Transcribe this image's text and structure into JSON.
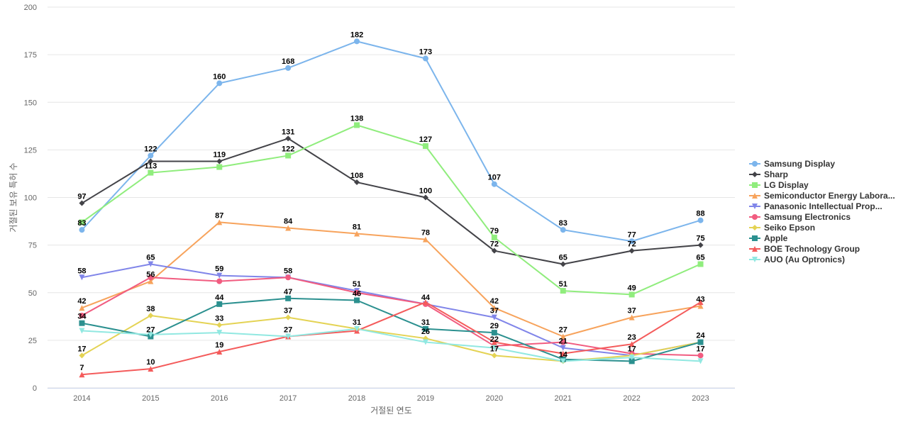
{
  "chart_data": {
    "type": "line",
    "title": "",
    "xlabel": "거절된 연도",
    "ylabel": "거절된 보유 특허 수",
    "categories": [
      "2014",
      "2015",
      "2016",
      "2017",
      "2018",
      "2019",
      "2020",
      "2021",
      "2022",
      "2023"
    ],
    "ylim": [
      0,
      200
    ],
    "yticks": [
      0,
      25,
      50,
      75,
      100,
      125,
      150,
      175,
      200
    ],
    "grid": true,
    "legend_position": "right",
    "series": [
      {
        "name": "Samsung Display",
        "color": "#7cb5ec",
        "marker": "circle",
        "values": [
          83,
          122,
          160,
          168,
          182,
          173,
          107,
          83,
          77,
          88
        ]
      },
      {
        "name": "Sharp",
        "color": "#434348",
        "marker": "diamond",
        "values": [
          97,
          119,
          119,
          131,
          108,
          100,
          72,
          65,
          72,
          75
        ]
      },
      {
        "name": "LG Display",
        "color": "#90ed7d",
        "marker": "square",
        "values": [
          87,
          113,
          116,
          122,
          138,
          127,
          79,
          51,
          49,
          65
        ]
      },
      {
        "name": "Semiconductor Energy Labora...",
        "color": "#f7a35c",
        "marker": "triangle",
        "values": [
          42,
          56,
          87,
          84,
          81,
          78,
          42,
          27,
          37,
          43
        ]
      },
      {
        "name": "Panasonic Intellectual Prop...",
        "color": "#8085e9",
        "marker": "triangle-down",
        "values": [
          58,
          65,
          59,
          58,
          51,
          44,
          37,
          21,
          17,
          24
        ]
      },
      {
        "name": "Samsung Electronics",
        "color": "#f15c80",
        "marker": "circle",
        "values": [
          38,
          58,
          56,
          58,
          50,
          44,
          22,
          24,
          18,
          17
        ]
      },
      {
        "name": "Seiko Epson",
        "color": "#e4d354",
        "marker": "diamond",
        "values": [
          17,
          38,
          33,
          37,
          31,
          26,
          17,
          14,
          17,
          24
        ]
      },
      {
        "name": "Apple",
        "color": "#2b908f",
        "marker": "square",
        "values": [
          34,
          27,
          44,
          47,
          46,
          31,
          29,
          15,
          14,
          24
        ]
      },
      {
        "name": "BOE Technology Group",
        "color": "#f45b5b",
        "marker": "triangle",
        "values": [
          7,
          10,
          19,
          27,
          30,
          45,
          24,
          18,
          23,
          45
        ]
      },
      {
        "name": "AUO (Au Optronics)",
        "color": "#91e8e1",
        "marker": "triangle-down",
        "values": [
          30,
          28,
          29,
          27,
          31,
          24,
          21,
          14,
          16,
          14
        ]
      }
    ],
    "data_labels": [
      {
        "x": "2014",
        "y": 97,
        "text": "97"
      },
      {
        "x": "2014",
        "y": 83,
        "text": "83"
      },
      {
        "x": "2014",
        "y": 58,
        "text": "58"
      },
      {
        "x": "2014",
        "y": 42,
        "text": "42"
      },
      {
        "x": "2014",
        "y": 34,
        "text": "34"
      },
      {
        "x": "2014",
        "y": 17,
        "text": "17"
      },
      {
        "x": "2014",
        "y": 7,
        "text": "7"
      },
      {
        "x": "2015",
        "y": 122,
        "text": "122"
      },
      {
        "x": "2015",
        "y": 113,
        "text": "113"
      },
      {
        "x": "2015",
        "y": 65,
        "text": "65"
      },
      {
        "x": "2015",
        "y": 56,
        "text": "56"
      },
      {
        "x": "2015",
        "y": 38,
        "text": "38"
      },
      {
        "x": "2015",
        "y": 27,
        "text": "27"
      },
      {
        "x": "2015",
        "y": 10,
        "text": "10"
      },
      {
        "x": "2016",
        "y": 160,
        "text": "160"
      },
      {
        "x": "2016",
        "y": 119,
        "text": "119"
      },
      {
        "x": "2016",
        "y": 87,
        "text": "87"
      },
      {
        "x": "2016",
        "y": 59,
        "text": "59"
      },
      {
        "x": "2016",
        "y": 44,
        "text": "44"
      },
      {
        "x": "2016",
        "y": 33,
        "text": "33"
      },
      {
        "x": "2016",
        "y": 19,
        "text": "19"
      },
      {
        "x": "2017",
        "y": 168,
        "text": "168"
      },
      {
        "x": "2017",
        "y": 131,
        "text": "131"
      },
      {
        "x": "2017",
        "y": 122,
        "text": "122"
      },
      {
        "x": "2017",
        "y": 84,
        "text": "84"
      },
      {
        "x": "2017",
        "y": 58,
        "text": "58"
      },
      {
        "x": "2017",
        "y": 47,
        "text": "47"
      },
      {
        "x": "2017",
        "y": 37,
        "text": "37"
      },
      {
        "x": "2017",
        "y": 27,
        "text": "27"
      },
      {
        "x": "2018",
        "y": 182,
        "text": "182"
      },
      {
        "x": "2018",
        "y": 138,
        "text": "138"
      },
      {
        "x": "2018",
        "y": 108,
        "text": "108"
      },
      {
        "x": "2018",
        "y": 81,
        "text": "81"
      },
      {
        "x": "2018",
        "y": 51,
        "text": "51"
      },
      {
        "x": "2018",
        "y": 46,
        "text": "46"
      },
      {
        "x": "2018",
        "y": 31,
        "text": "31"
      },
      {
        "x": "2019",
        "y": 173,
        "text": "173"
      },
      {
        "x": "2019",
        "y": 127,
        "text": "127"
      },
      {
        "x": "2019",
        "y": 100,
        "text": "100"
      },
      {
        "x": "2019",
        "y": 78,
        "text": "78"
      },
      {
        "x": "2019",
        "y": 44,
        "text": "44"
      },
      {
        "x": "2019",
        "y": 31,
        "text": "31"
      },
      {
        "x": "2019",
        "y": 26,
        "text": "26"
      },
      {
        "x": "2020",
        "y": 107,
        "text": "107"
      },
      {
        "x": "2020",
        "y": 79,
        "text": "79"
      },
      {
        "x": "2020",
        "y": 72,
        "text": "72"
      },
      {
        "x": "2020",
        "y": 42,
        "text": "42"
      },
      {
        "x": "2020",
        "y": 37,
        "text": "37"
      },
      {
        "x": "2020",
        "y": 29,
        "text": "29"
      },
      {
        "x": "2020",
        "y": 22,
        "text": "22"
      },
      {
        "x": "2020",
        "y": 17,
        "text": "17"
      },
      {
        "x": "2021",
        "y": 83,
        "text": "83"
      },
      {
        "x": "2021",
        "y": 65,
        "text": "65"
      },
      {
        "x": "2021",
        "y": 51,
        "text": "51"
      },
      {
        "x": "2021",
        "y": 27,
        "text": "27"
      },
      {
        "x": "2021",
        "y": 21,
        "text": "21"
      },
      {
        "x": "2021",
        "y": 14,
        "text": "14"
      },
      {
        "x": "2022",
        "y": 77,
        "text": "77"
      },
      {
        "x": "2022",
        "y": 72,
        "text": "72"
      },
      {
        "x": "2022",
        "y": 49,
        "text": "49"
      },
      {
        "x": "2022",
        "y": 37,
        "text": "37"
      },
      {
        "x": "2022",
        "y": 23,
        "text": "23"
      },
      {
        "x": "2022",
        "y": 17,
        "text": "17"
      },
      {
        "x": "2023",
        "y": 88,
        "text": "88"
      },
      {
        "x": "2023",
        "y": 75,
        "text": "75"
      },
      {
        "x": "2023",
        "y": 65,
        "text": "65"
      },
      {
        "x": "2023",
        "y": 43,
        "text": "43"
      },
      {
        "x": "2023",
        "y": 24,
        "text": "24"
      },
      {
        "x": "2023",
        "y": 17,
        "text": "17"
      }
    ]
  }
}
